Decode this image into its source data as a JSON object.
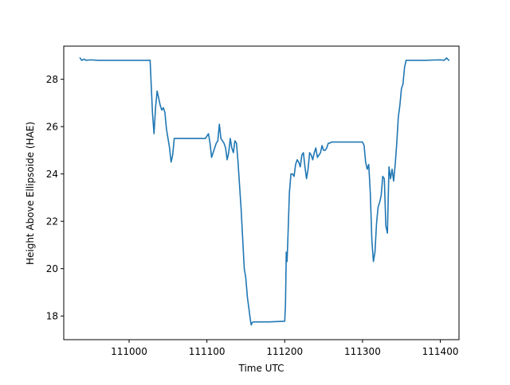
{
  "chart_data": {
    "type": "line",
    "title": "",
    "xlabel": "Time UTC",
    "ylabel": "Height Above Ellipsoide (HAE)",
    "xlim": [
      110916,
      111424
    ],
    "ylim": [
      17.0,
      29.4
    ],
    "x_ticks": [
      111000,
      111100,
      111200,
      111300,
      111400
    ],
    "x_tick_labels": [
      "111000",
      "111100",
      "111200",
      "111300",
      "111400"
    ],
    "y_ticks": [
      18,
      20,
      22,
      24,
      26,
      28
    ],
    "y_tick_labels": [
      "18",
      "20",
      "22",
      "24",
      "26",
      "28"
    ],
    "grid": false,
    "legend": "none",
    "series": [
      {
        "color": "#1f77b4",
        "x": [
          110937,
          110939,
          110942,
          110945,
          110950,
          110960,
          110990,
          111010,
          111027,
          111030,
          111032,
          111034,
          111036,
          111038,
          111040,
          111042,
          111044,
          111046,
          111048,
          111050,
          111052,
          111054,
          111056,
          111058,
          111060,
          111070,
          111080,
          111090,
          111098,
          111100,
          111102,
          111104,
          111106,
          111108,
          111110,
          111112,
          111114,
          111116,
          111118,
          111120,
          111122,
          111124,
          111126,
          111128,
          111130,
          111132,
          111134,
          111136,
          111138,
          111140,
          111144,
          111148,
          111150,
          111152,
          111154,
          111156,
          111157,
          111158,
          111160,
          111180,
          111200,
          111201,
          111202,
          111203,
          111204,
          111206,
          111208,
          111210,
          111212,
          111214,
          111216,
          111218,
          111220,
          111222,
          111224,
          111226,
          111228,
          111230,
          111232,
          111234,
          111236,
          111238,
          111240,
          111242,
          111244,
          111246,
          111248,
          111250,
          111252,
          111254,
          111256,
          111258,
          111260,
          111280,
          111300,
          111302,
          111304,
          111306,
          111308,
          111310,
          111312,
          111314,
          111316,
          111318,
          111320,
          111322,
          111324,
          111326,
          111328,
          111330,
          111332,
          111334,
          111336,
          111338,
          111340,
          111342,
          111344,
          111346,
          111348,
          111350,
          111352,
          111354,
          111356,
          111358,
          111360,
          111380,
          111400,
          111405,
          111408,
          111411
        ],
        "y": [
          28.9,
          28.8,
          28.85,
          28.8,
          28.82,
          28.8,
          28.8,
          28.8,
          28.8,
          26.6,
          25.7,
          26.8,
          27.5,
          27.2,
          26.9,
          26.7,
          26.8,
          26.6,
          25.9,
          25.5,
          25.1,
          24.5,
          24.8,
          25.5,
          25.5,
          25.5,
          25.5,
          25.5,
          25.5,
          25.6,
          25.7,
          25.3,
          24.7,
          24.9,
          25.1,
          25.3,
          25.4,
          26.1,
          25.5,
          25.4,
          25.3,
          25.1,
          24.6,
          24.9,
          25.5,
          25.1,
          24.9,
          25.4,
          25.3,
          24.5,
          22.5,
          20.0,
          19.6,
          18.8,
          18.3,
          17.8,
          17.62,
          17.72,
          17.75,
          17.75,
          17.78,
          18.5,
          20.7,
          20.3,
          21.2,
          23.2,
          24.0,
          24.0,
          23.9,
          24.4,
          24.6,
          24.5,
          24.3,
          24.8,
          24.9,
          24.3,
          23.8,
          24.2,
          24.9,
          24.8,
          24.6,
          24.9,
          25.1,
          24.7,
          24.8,
          24.9,
          25.2,
          25.0,
          25.0,
          25.1,
          25.3,
          25.3,
          25.35,
          25.35,
          25.35,
          25.2,
          24.5,
          24.2,
          24.4,
          23.2,
          21.2,
          20.3,
          20.7,
          21.9,
          22.6,
          22.8,
          23.1,
          23.9,
          23.8,
          21.8,
          21.5,
          24.3,
          23.8,
          24.2,
          23.7,
          24.4,
          25.3,
          26.4,
          26.9,
          27.6,
          27.8,
          28.5,
          28.8,
          28.8,
          28.8,
          28.8,
          28.82,
          28.8,
          28.9,
          28.8
        ]
      }
    ]
  }
}
